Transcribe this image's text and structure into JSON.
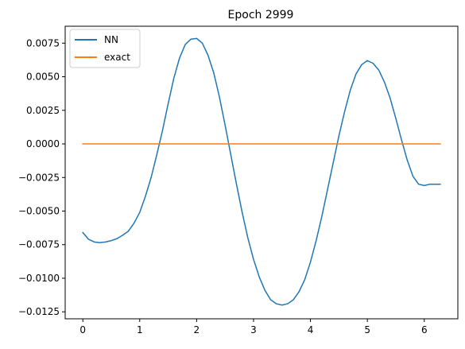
{
  "chart_data": {
    "type": "line",
    "title": "Epoch 2999",
    "xlabel": "",
    "ylabel": "",
    "xlim": [
      -0.31,
      6.59
    ],
    "ylim": [
      -0.01302,
      0.00876
    ],
    "xticks": [
      0,
      1,
      2,
      3,
      4,
      5,
      6
    ],
    "xtick_labels": [
      "0",
      "1",
      "2",
      "3",
      "4",
      "5",
      "6"
    ],
    "yticks": [
      0.0075,
      0.005,
      0.0025,
      0.0,
      -0.0025,
      -0.005,
      -0.0075,
      -0.01,
      -0.0125
    ],
    "ytick_labels": [
      "0.0075",
      "0.0050",
      "0.0025",
      "0.0000",
      "−0.0025",
      "−0.0050",
      "−0.0075",
      "−0.0100",
      "−0.0125"
    ],
    "grid": false,
    "legend": {
      "position": "top-left",
      "entries": [
        "NN",
        "exact"
      ]
    },
    "series": [
      {
        "name": "NN",
        "color": "#1f77b4",
        "x": [
          0.0,
          0.1,
          0.2,
          0.3,
          0.4,
          0.5,
          0.6,
          0.7,
          0.8,
          0.9,
          1.0,
          1.1,
          1.2,
          1.3,
          1.4,
          1.5,
          1.6,
          1.7,
          1.8,
          1.9,
          2.0,
          2.1,
          2.2,
          2.3,
          2.4,
          2.5,
          2.6,
          2.7,
          2.8,
          2.9,
          3.0,
          3.1,
          3.2,
          3.3,
          3.4,
          3.5,
          3.6,
          3.7,
          3.8,
          3.9,
          4.0,
          4.1,
          4.2,
          4.3,
          4.4,
          4.5,
          4.6,
          4.7,
          4.8,
          4.9,
          5.0,
          5.1,
          5.2,
          5.3,
          5.4,
          5.5,
          5.6,
          5.7,
          5.8,
          5.9,
          6.0,
          6.1,
          6.2,
          6.28
        ],
        "y": [
          -0.0066,
          -0.0071,
          -0.0073,
          -0.00735,
          -0.0073,
          -0.0072,
          -0.00705,
          -0.0068,
          -0.0065,
          -0.0059,
          -0.0051,
          -0.0039,
          -0.0025,
          -0.0008,
          0.001,
          0.003,
          0.0049,
          0.0064,
          0.0074,
          0.0078,
          0.00785,
          0.0075,
          0.0066,
          0.0053,
          0.0035,
          0.0014,
          -0.0008,
          -0.003,
          -0.0051,
          -0.007,
          -0.0086,
          -0.0099,
          -0.0109,
          -0.0116,
          -0.0119,
          -0.012,
          -0.0119,
          -0.0116,
          -0.011,
          -0.0101,
          -0.0088,
          -0.0072,
          -0.0054,
          -0.0034,
          -0.0014,
          0.0006,
          0.0024,
          0.004,
          0.0052,
          0.0059,
          0.0062,
          0.006,
          0.0055,
          0.0046,
          0.0034,
          0.0019,
          0.0003,
          -0.0012,
          -0.0024,
          -0.003,
          -0.0031,
          -0.003,
          -0.003,
          -0.003
        ]
      },
      {
        "name": "exact",
        "color": "#ff7f0e",
        "x": [
          0.0,
          6.28
        ],
        "y": [
          0.0,
          0.0
        ]
      }
    ]
  }
}
